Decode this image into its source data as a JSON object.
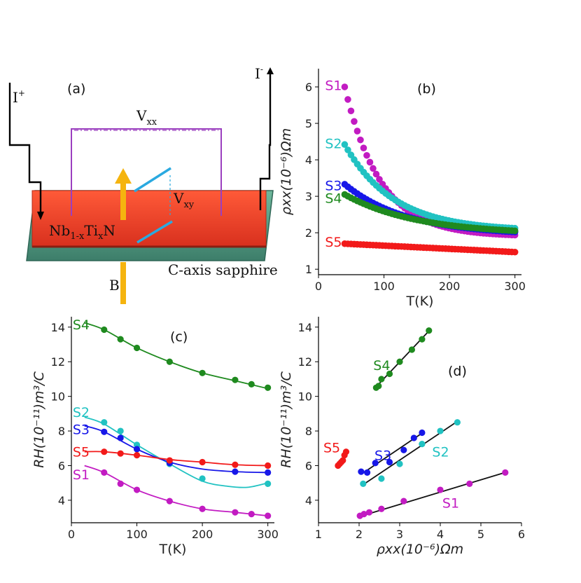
{
  "colors": {
    "S1": "#c21bc2",
    "S2": "#21c2c2",
    "S3": "#1717e8",
    "S4": "#1f8a1f",
    "S5": "#f21a1a",
    "arrow": "#f5b40f",
    "film": "#e8402a",
    "substrate": "#5aa088",
    "probe": "#9b3fbf",
    "hall": "#2aa9e0"
  },
  "diagram": {
    "panel_label": "(a)",
    "i_plus": "I",
    "i_plus_sup": "+",
    "i_minus": "I",
    "i_minus_sup": "-",
    "vxx": "V",
    "vxx_sub": "xx",
    "vxy": "V",
    "vxy_sub": "xy",
    "film_label_parts": [
      "Nb",
      "1-x",
      "Ti",
      "x",
      "N"
    ],
    "substrate_label": "C-axis sapphire",
    "field_label": "B"
  },
  "chart_data": [
    {
      "panel": "(b)",
      "type": "scatter",
      "xlabel": "T(K)",
      "ylabel": "ρxx(10⁻⁶)Ωm",
      "xlim": [
        0,
        310
      ],
      "ylim": [
        0.85,
        6.5
      ],
      "xticks": [
        0,
        100,
        200,
        300
      ],
      "yticks": [
        1,
        2,
        3,
        4,
        5,
        6
      ],
      "series": [
        {
          "name": "S1",
          "model": "exp",
          "params": [
            40,
            300,
            6.0,
            1.9,
            55
          ],
          "n": 55
        },
        {
          "name": "S2",
          "model": "exp",
          "params": [
            40,
            300,
            4.42,
            2.05,
            75
          ],
          "n": 55
        },
        {
          "name": "S3",
          "model": "exp",
          "params": [
            40,
            300,
            3.33,
            1.93,
            95
          ],
          "n": 55
        },
        {
          "name": "S4",
          "model": "exp",
          "params": [
            40,
            300,
            3.05,
            1.95,
            110
          ],
          "n": 55
        },
        {
          "name": "S5",
          "model": "lin",
          "params": [
            40,
            300,
            1.7,
            1.47
          ],
          "n": 55
        }
      ],
      "labels": [
        {
          "name": "S1",
          "x": 10,
          "y": 6.05
        },
        {
          "name": "S2",
          "x": 10,
          "y": 4.45
        },
        {
          "name": "S3",
          "x": 10,
          "y": 3.3
        },
        {
          "name": "S4",
          "x": 10,
          "y": 2.95
        },
        {
          "name": "S5",
          "x": 10,
          "y": 1.75
        }
      ]
    },
    {
      "panel": "(c)",
      "type": "line",
      "xlabel": "T(K)",
      "ylabel": "RH(10⁻¹¹)m³/C",
      "xlim": [
        0,
        310
      ],
      "ylim": [
        2.7,
        14.6
      ],
      "xticks": [
        0,
        100,
        200,
        300
      ],
      "yticks": [
        4,
        6,
        8,
        10,
        12,
        14
      ],
      "series": [
        {
          "name": "S4",
          "points": [
            [
              50,
              13.85
            ],
            [
              75,
              13.3
            ],
            [
              100,
              12.8
            ],
            [
              150,
              12.0
            ],
            [
              200,
              11.35
            ],
            [
              250,
              10.95
            ],
            [
              275,
              10.7
            ],
            [
              300,
              10.5
            ]
          ],
          "fit": [
            [
              20,
              14.25
            ],
            [
              50,
              13.85
            ],
            [
              100,
              12.8
            ],
            [
              150,
              12.0
            ],
            [
              200,
              11.35
            ],
            [
              250,
              10.9
            ],
            [
              300,
              10.45
            ]
          ]
        },
        {
          "name": "S2",
          "points": [
            [
              50,
              8.5
            ],
            [
              75,
              8.0
            ],
            [
              100,
              7.2
            ],
            [
              150,
              6.1
            ],
            [
              200,
              5.25
            ],
            [
              300,
              4.95
            ]
          ],
          "fit": [
            [
              20,
              8.8
            ],
            [
              50,
              8.4
            ],
            [
              100,
              7.2
            ],
            [
              150,
              6.1
            ],
            [
              200,
              5.1
            ],
            [
              240,
              4.8
            ],
            [
              270,
              4.75
            ],
            [
              300,
              5.0
            ]
          ]
        },
        {
          "name": "S3",
          "points": [
            [
              50,
              7.95
            ],
            [
              75,
              7.6
            ],
            [
              100,
              6.95
            ],
            [
              150,
              6.15
            ],
            [
              250,
              5.65
            ],
            [
              300,
              5.6
            ]
          ],
          "fit": [
            [
              20,
              8.3
            ],
            [
              50,
              7.95
            ],
            [
              100,
              6.95
            ],
            [
              150,
              6.2
            ],
            [
              200,
              5.8
            ],
            [
              250,
              5.65
            ],
            [
              300,
              5.6
            ]
          ]
        },
        {
          "name": "S5",
          "points": [
            [
              50,
              6.8
            ],
            [
              75,
              6.7
            ],
            [
              100,
              6.6
            ],
            [
              150,
              6.3
            ],
            [
              200,
              6.2
            ],
            [
              250,
              6.05
            ],
            [
              300,
              6.0
            ]
          ],
          "fit": [
            [
              20,
              6.8
            ],
            [
              50,
              6.8
            ],
            [
              100,
              6.6
            ],
            [
              150,
              6.35
            ],
            [
              200,
              6.2
            ],
            [
              250,
              6.05
            ],
            [
              300,
              6.0
            ]
          ]
        },
        {
          "name": "S1",
          "points": [
            [
              50,
              5.6
            ],
            [
              75,
              4.95
            ],
            [
              100,
              4.6
            ],
            [
              150,
              3.95
            ],
            [
              200,
              3.5
            ],
            [
              250,
              3.3
            ],
            [
              275,
              3.2
            ],
            [
              300,
              3.1
            ]
          ],
          "fit": [
            [
              20,
              6.0
            ],
            [
              50,
              5.6
            ],
            [
              100,
              4.6
            ],
            [
              150,
              3.95
            ],
            [
              200,
              3.5
            ],
            [
              250,
              3.3
            ],
            [
              300,
              3.1
            ]
          ]
        }
      ],
      "labels": [
        {
          "name": "S4",
          "x": 2,
          "y": 14.15
        },
        {
          "name": "S2",
          "x": 2,
          "y": 9.1
        },
        {
          "name": "S3",
          "x": 2,
          "y": 8.1
        },
        {
          "name": "S5",
          "x": 2,
          "y": 6.8
        },
        {
          "name": "S1",
          "x": 2,
          "y": 5.5
        }
      ]
    },
    {
      "panel": "(d)",
      "type": "scatter",
      "xlabel": "ρxx(10⁻⁶)Ωm",
      "ylabel": "RH(10⁻¹¹)m³/C",
      "xlim": [
        1,
        6
      ],
      "ylim": [
        2.7,
        14.6
      ],
      "xticks": [
        1,
        2,
        3,
        4,
        5,
        6
      ],
      "yticks": [
        4,
        6,
        8,
        10,
        12,
        14
      ],
      "series": [
        {
          "name": "S4",
          "points": [
            [
              2.42,
              10.5
            ],
            [
              2.48,
              10.6
            ],
            [
              2.55,
              11.0
            ],
            [
              2.75,
              11.3
            ],
            [
              3.0,
              12.0
            ],
            [
              3.3,
              12.7
            ],
            [
              3.55,
              13.3
            ],
            [
              3.72,
              13.8
            ]
          ],
          "fit": [
            [
              2.38,
              10.45
            ],
            [
              3.75,
              13.85
            ]
          ]
        },
        {
          "name": "S2",
          "points": [
            [
              2.1,
              4.95
            ],
            [
              2.55,
              5.25
            ],
            [
              3.0,
              6.1
            ],
            [
              3.55,
              7.25
            ],
            [
              4.0,
              8.0
            ],
            [
              4.42,
              8.5
            ]
          ],
          "fit": [
            [
              2.1,
              4.9
            ],
            [
              4.45,
              8.6
            ]
          ]
        },
        {
          "name": "S3",
          "points": [
            [
              2.05,
              5.65
            ],
            [
              2.2,
              5.6
            ],
            [
              2.4,
              6.15
            ],
            [
              2.75,
              6.2
            ],
            [
              3.1,
              6.9
            ],
            [
              3.35,
              7.6
            ],
            [
              3.55,
              7.9
            ]
          ],
          "fit": [
            [
              2.05,
              5.5
            ],
            [
              3.6,
              7.95
            ]
          ]
        },
        {
          "name": "S5",
          "points": [
            [
              1.48,
              6.0
            ],
            [
              1.52,
              6.1
            ],
            [
              1.56,
              6.2
            ],
            [
              1.6,
              6.3
            ],
            [
              1.64,
              6.6
            ],
            [
              1.68,
              6.8
            ]
          ],
          "fit": [
            [
              1.46,
              5.95
            ],
            [
              1.7,
              6.8
            ]
          ]
        },
        {
          "name": "S1",
          "points": [
            [
              2.02,
              3.1
            ],
            [
              2.12,
              3.2
            ],
            [
              2.25,
              3.3
            ],
            [
              2.55,
              3.5
            ],
            [
              3.1,
              3.95
            ],
            [
              4.0,
              4.6
            ],
            [
              4.72,
              4.95
            ],
            [
              5.6,
              5.6
            ]
          ],
          "fit": [
            [
              2.0,
              3.05
            ],
            [
              5.62,
              5.62
            ]
          ]
        }
      ],
      "labels": [
        {
          "name": "S4",
          "x": 2.35,
          "y": 11.8
        },
        {
          "name": "S5",
          "x": 1.12,
          "y": 7.05
        },
        {
          "name": "S3",
          "x": 2.38,
          "y": 6.6
        },
        {
          "name": "S2",
          "x": 3.8,
          "y": 6.8
        },
        {
          "name": "S1",
          "x": 4.05,
          "y": 3.85
        }
      ]
    }
  ]
}
